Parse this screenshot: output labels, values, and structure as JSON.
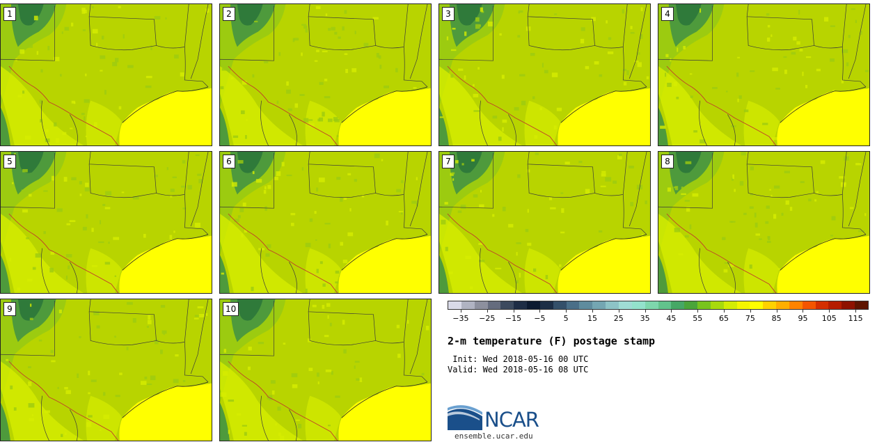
{
  "panels": [
    {
      "label": "1"
    },
    {
      "label": "2"
    },
    {
      "label": "3"
    },
    {
      "label": "4"
    },
    {
      "label": "5"
    },
    {
      "label": "6"
    },
    {
      "label": "7"
    },
    {
      "label": "8"
    },
    {
      "label": "9"
    },
    {
      "label": "10"
    }
  ],
  "colorbar": {
    "colors": [
      "#d9dae8",
      "#b0b3c2",
      "#8d909e",
      "#656c7e",
      "#3c4a5e",
      "#1e2d45",
      "#0c1a30",
      "#1c2e46",
      "#34506a",
      "#4a6f88",
      "#5f8c9e",
      "#74a6b2",
      "#8dc3c6",
      "#9fdcd4",
      "#93e2cc",
      "#7ed7ad",
      "#62c38c",
      "#46a866",
      "#4aa53a",
      "#78c41e",
      "#a8da0c",
      "#d3ec04",
      "#f4f600",
      "#ffff00",
      "#ffd200",
      "#ffae00",
      "#ff8300",
      "#f45500",
      "#d42e00",
      "#b51c00",
      "#8e1200",
      "#5e1400"
    ],
    "tick_labels": [
      "−35",
      "−25",
      "−15",
      "−5",
      "5",
      "15",
      "25",
      "35",
      "45",
      "55",
      "65",
      "75",
      "85",
      "95",
      "105",
      "115"
    ],
    "value_min": -40,
    "value_max": 120
  },
  "title": "2-m temperature (F) postage stamp",
  "init": " Init: Wed 2018-05-16 00 UTC",
  "valid": "Valid: Wed 2018-05-16 08 UTC",
  "logo_text": "NCAR",
  "url": "ensemble.ucar.edu",
  "colors": {
    "land_base": "#b8d400",
    "land_warm": "#d6ec00",
    "land_cool": "#9ccb10",
    "mountain": "#4e9a3c",
    "mountain_dark": "#2f7a3a",
    "gulf": "#ffff00",
    "border": "#3a3a3a",
    "ncar_blue": "#1a4f8a"
  }
}
